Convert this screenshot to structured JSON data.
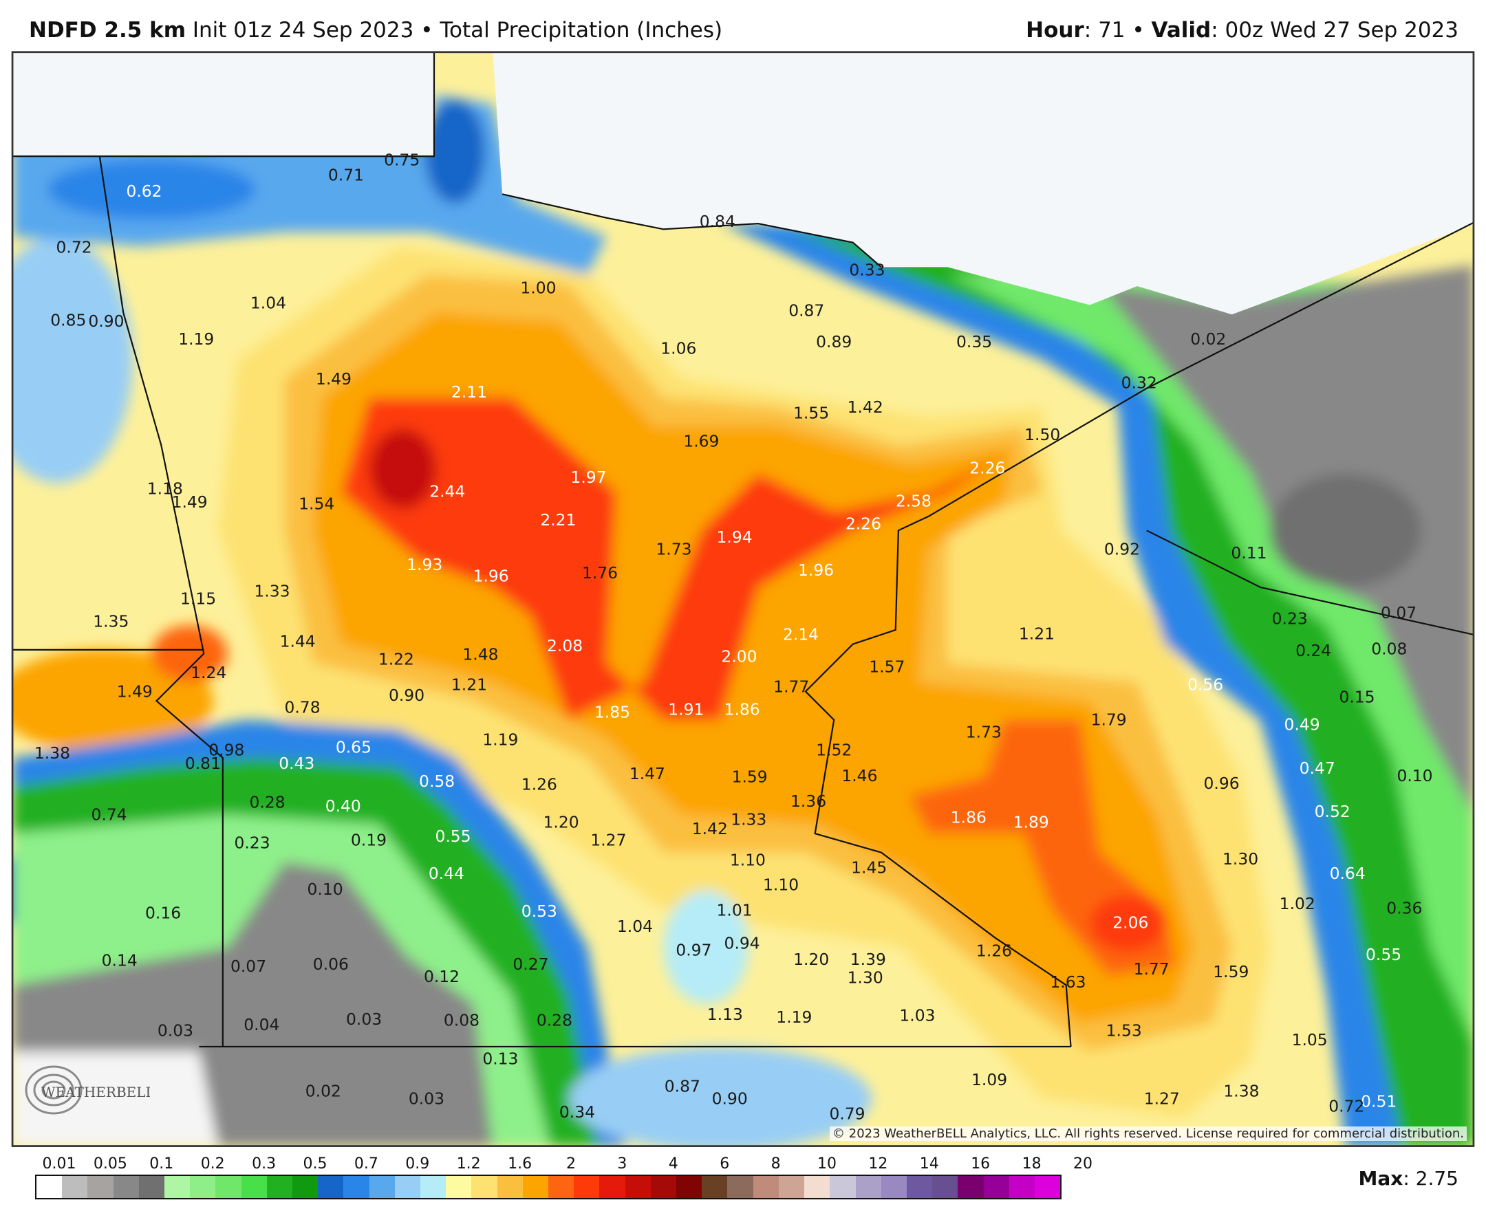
{
  "header": {
    "model": "NDFD 2.5 km",
    "init": "Init 01z 24 Sep 2023",
    "separator": "•",
    "product": "Total Precipitation (Inches)",
    "hour_label": "Hour",
    "hour_value": ": 71",
    "valid_label": "Valid",
    "valid_value": ": 00z Wed 27 Sep 2023"
  },
  "legend": {
    "ticks": [
      "0.01",
      "0.05",
      "0.1",
      "0.2",
      "0.3",
      "0.5",
      "0.7",
      "0.9",
      "1.2",
      "1.6",
      "2",
      "3",
      "4",
      "6",
      "8",
      "10",
      "12",
      "14",
      "16",
      "18",
      "20"
    ],
    "colors": [
      "#ffffff",
      "#bdbdbd",
      "#a6a3a0",
      "#888888",
      "#707070",
      "#aef5a4",
      "#8eef88",
      "#6fe86a",
      "#48e048",
      "#20b020",
      "#0f9a0f",
      "#1665c8",
      "#2a85e8",
      "#58a8ee",
      "#98cef5",
      "#b5ecf7",
      "#fefaa0",
      "#fde272",
      "#fbbf40",
      "#fca400",
      "#fd6510",
      "#fd3a08",
      "#e51a0a",
      "#c50e08",
      "#a50a08",
      "#800404",
      "#6a4024",
      "#8c6a5c",
      "#bf8c7c",
      "#cea494",
      "#f3dcd0",
      "#c9c7d9",
      "#aaa0c8",
      "#9a88c0",
      "#6e58a0",
      "#685090",
      "#7a006e",
      "#960098",
      "#c400c6",
      "#dc00dc"
    ],
    "max_label": "Max",
    "max_value": ": 2.75"
  },
  "map": {
    "values": [
      "0.62",
      "0.71",
      "0.75",
      "0.72",
      "1.04",
      "1.00",
      "0.85",
      "0.90",
      "1.19",
      "0.84",
      "0.33",
      "0.87",
      "0.89",
      "1.06",
      "0.35",
      "0.02",
      "1.49",
      "2.11",
      "1.55",
      "1.42",
      "0.32",
      "1.69",
      "1.50",
      "1.97",
      "2.26",
      "1.18",
      "1.49",
      "1.54",
      "2.44",
      "2.58",
      "2.21",
      "2.26",
      "1.94",
      "1.73",
      "0.92",
      "0.11",
      "1.93",
      "1.96",
      "1.76",
      "1.96",
      "1.15",
      "1.33",
      "1.35",
      "0.23",
      "0.07",
      "1.21",
      "2.14",
      "1.44",
      "2.08",
      "1.48",
      "1.22",
      "2.00",
      "0.24",
      "0.08",
      "1.24",
      "1.57",
      "1.21",
      "1.77",
      "0.56",
      "1.49",
      "0.90",
      "0.15",
      "0.78",
      "1.85",
      "1.91",
      "1.86",
      "1.79",
      "0.49",
      "1.73",
      "1.38",
      "0.98",
      "0.81",
      "0.65",
      "1.19",
      "0.43",
      "1.52",
      "0.47",
      "0.10",
      "1.47",
      "1.59",
      "1.46",
      "0.58",
      "1.26",
      "0.96",
      "0.28",
      "0.40",
      "1.36",
      "0.52",
      "0.74",
      "1.86",
      "1.89",
      "1.20",
      "1.33",
      "1.42",
      "0.55",
      "0.19",
      "0.23",
      "1.27",
      "1.30",
      "1.10",
      "1.45",
      "0.44",
      "0.64",
      "1.10",
      "0.10",
      "1.02",
      "0.36",
      "0.16",
      "0.53",
      "1.01",
      "2.06",
      "1.04",
      "0.94",
      "0.97",
      "1.26",
      "0.55",
      "0.14",
      "0.07",
      "0.06",
      "1.20",
      "1.39",
      "1.77",
      "1.59",
      "0.27",
      "0.12",
      "1.30",
      "1.63",
      "1.13",
      "1.19",
      "1.03",
      "0.03",
      "0.04",
      "0.08",
      "0.28",
      "0.03",
      "1.53",
      "1.05",
      "0.13",
      "1.09",
      "0.87",
      "0.02",
      "1.38",
      "0.90",
      "0.03",
      "1.27",
      "0.51",
      "0.72",
      "0.34",
      "0.79"
    ],
    "label_colors": {
      "light": "#ffffff",
      "dark": "#1a1a1a"
    },
    "boundary_color": "#111111",
    "land_background": "#f4f7fa"
  },
  "copyright": "© 2023 WeatherBELL Analytics, LLC. All rights reserved. License required for commercial distribution.",
  "logo": "WeatherBELL"
}
